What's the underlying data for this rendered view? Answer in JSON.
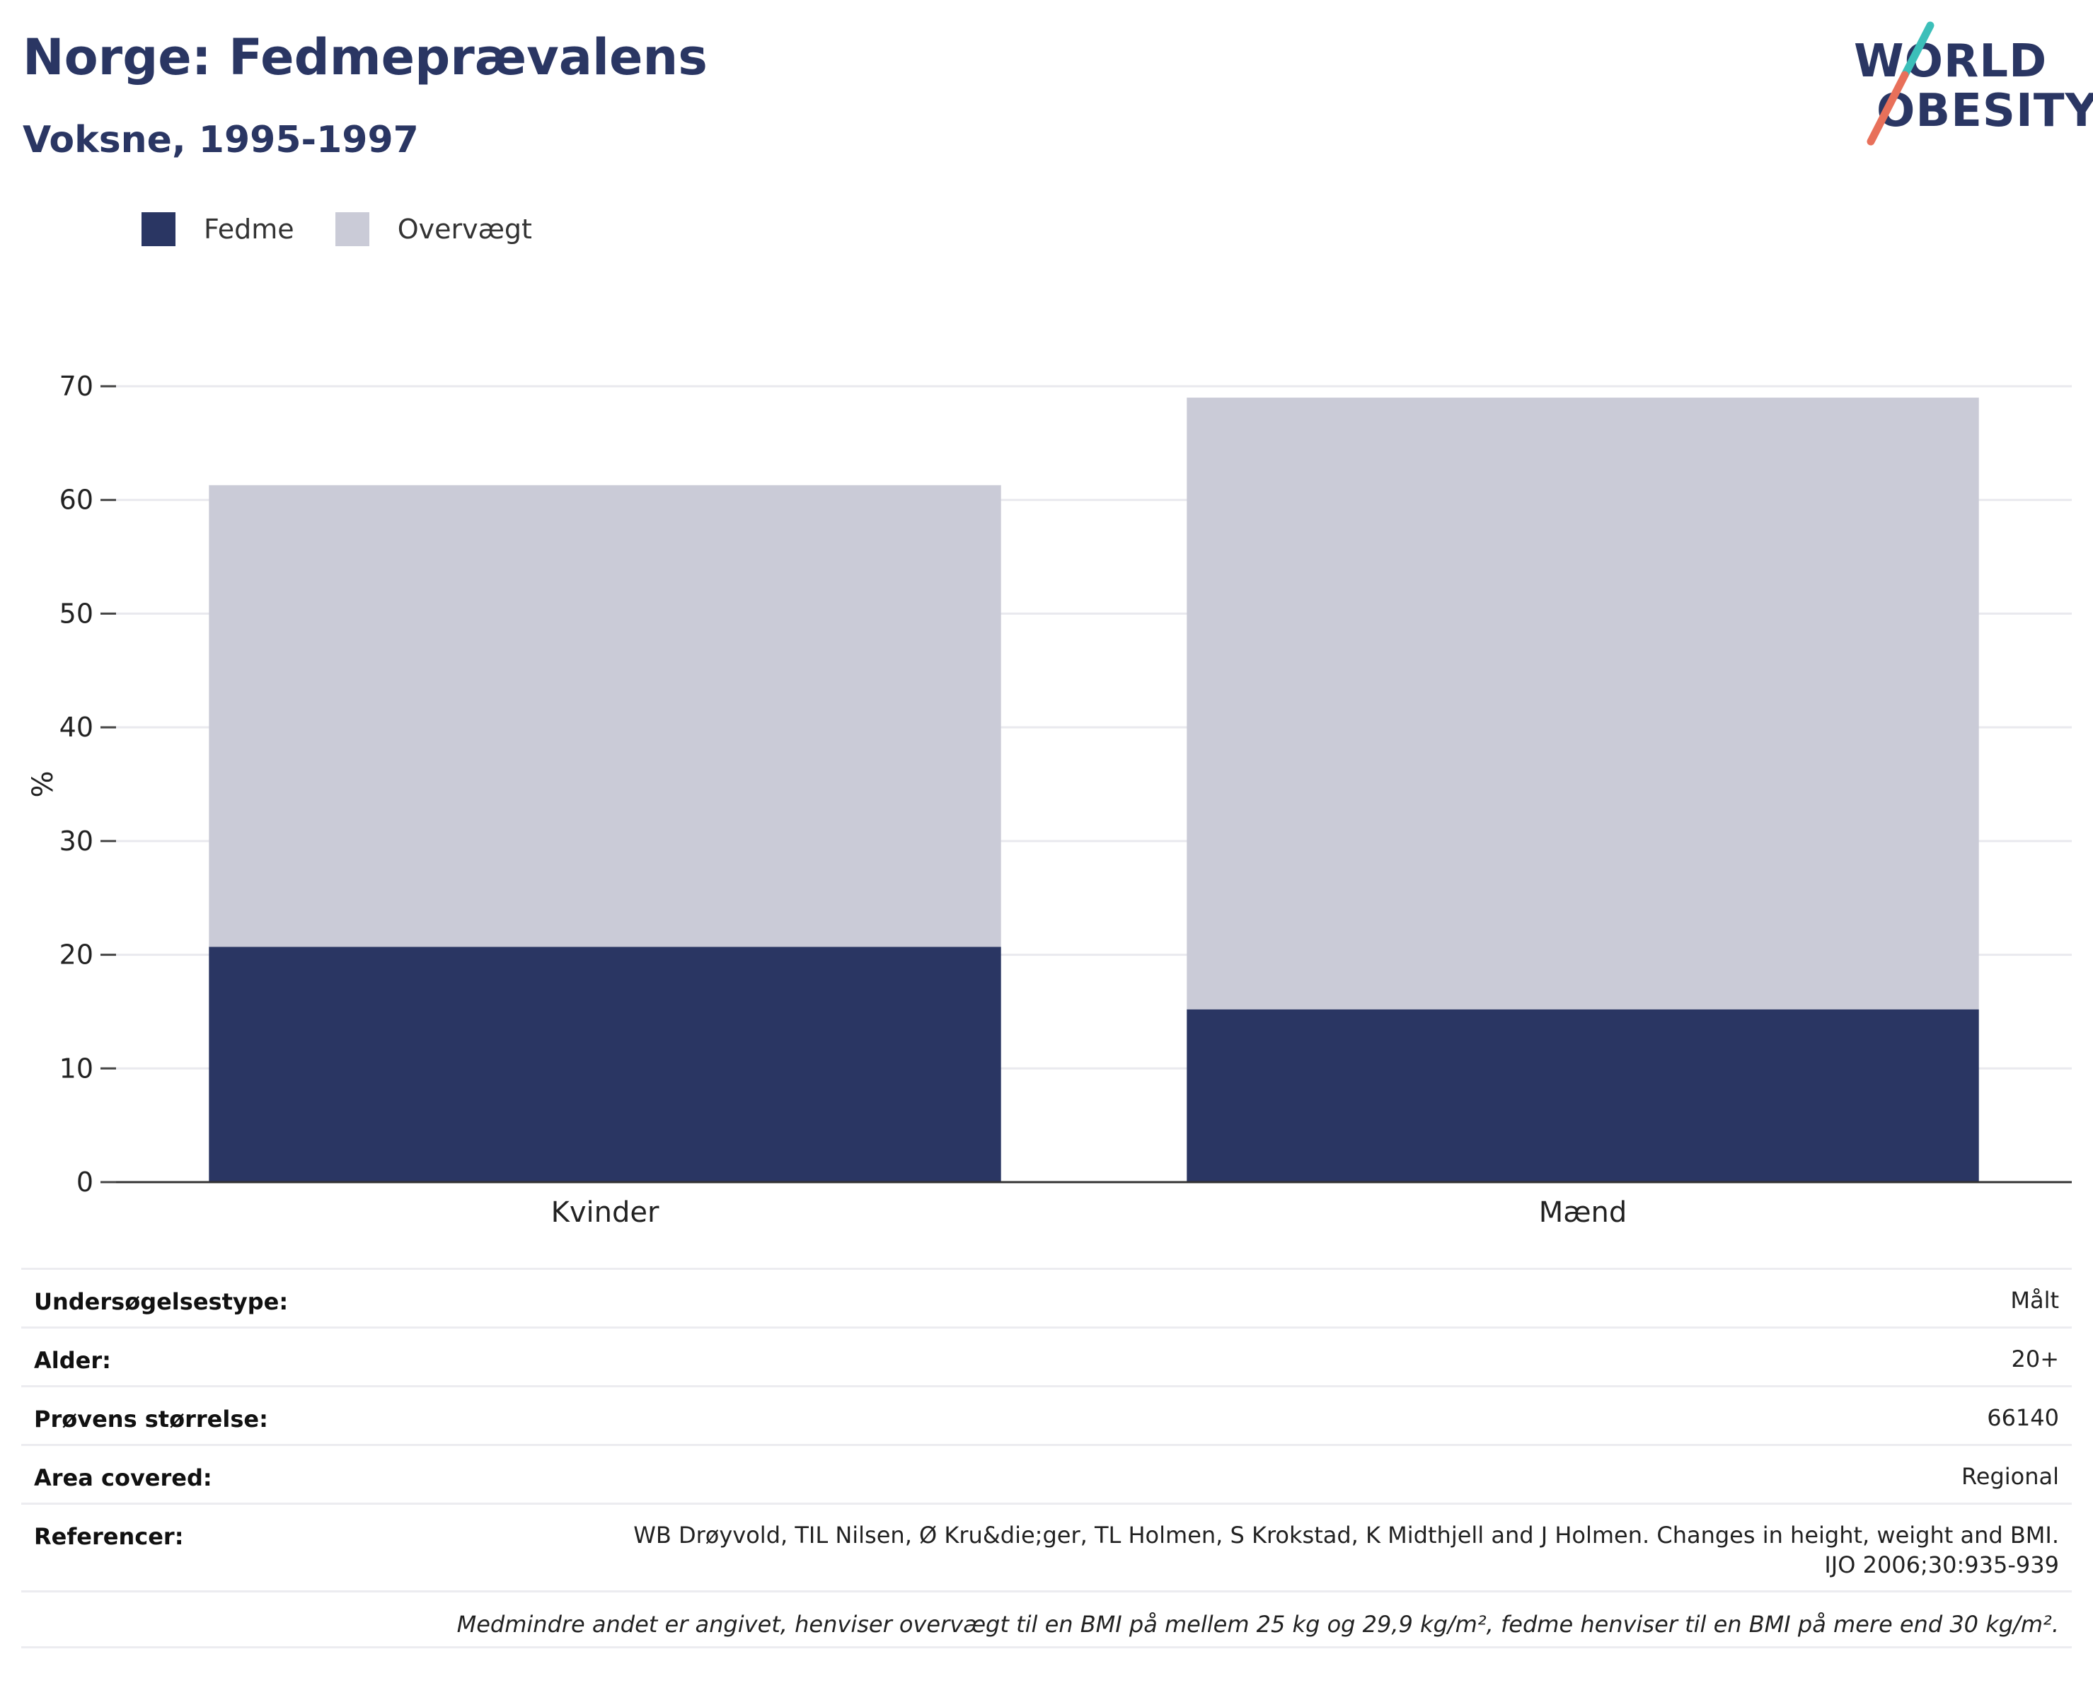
{
  "header": {
    "title": "Norge: Fedmeprævalens",
    "subtitle": "Voksne, 1995-1997"
  },
  "logo": {
    "line1": "WORLD",
    "line2": "OBESITY",
    "colors": {
      "text": "#2a3663",
      "slash_top": "#3cbfb9",
      "slash_bottom": "#e8705a"
    }
  },
  "legend": {
    "items": [
      {
        "label": "Fedme",
        "color": "#2a3663"
      },
      {
        "label": "Overvægt",
        "color": "#cacbd7"
      }
    ]
  },
  "chart_data": {
    "type": "bar",
    "stacked": true,
    "categories": [
      "Kvinder",
      "Mænd"
    ],
    "series": [
      {
        "name": "Fedme",
        "color": "#2a3663",
        "values": [
          20.7,
          15.2
        ]
      },
      {
        "name": "Overvægt",
        "color": "#cacbd7",
        "values": [
          40.6,
          53.8
        ]
      }
    ],
    "xlabel": "",
    "ylabel": "%",
    "ylim": [
      0,
      70
    ],
    "yticks": [
      0,
      10,
      20,
      30,
      40,
      50,
      60,
      70
    ],
    "grid": true,
    "legend_position": "top-left"
  },
  "info": {
    "rows": [
      {
        "label": "Undersøgelsestype:",
        "value": "Målt"
      },
      {
        "label": "Alder:",
        "value": "20+"
      },
      {
        "label": "Prøvens størrelse:",
        "value": "66140"
      },
      {
        "label": "Area covered:",
        "value": "Regional"
      },
      {
        "label": "Referencer:",
        "value": "WB Drøyvold, TIL Nilsen, Ø Kru&die;ger, TL Holmen, S Krokstad, K Midthjell and J Holmen. Changes in height, weight and BMI. IJO 2006;30:935-939"
      }
    ],
    "note": "Medmindre andet er angivet, henviser overvægt til en BMI på mellem 25 kg og 29,9 kg/m², fedme henviser til en BMI på mere end 30 kg/m²."
  }
}
